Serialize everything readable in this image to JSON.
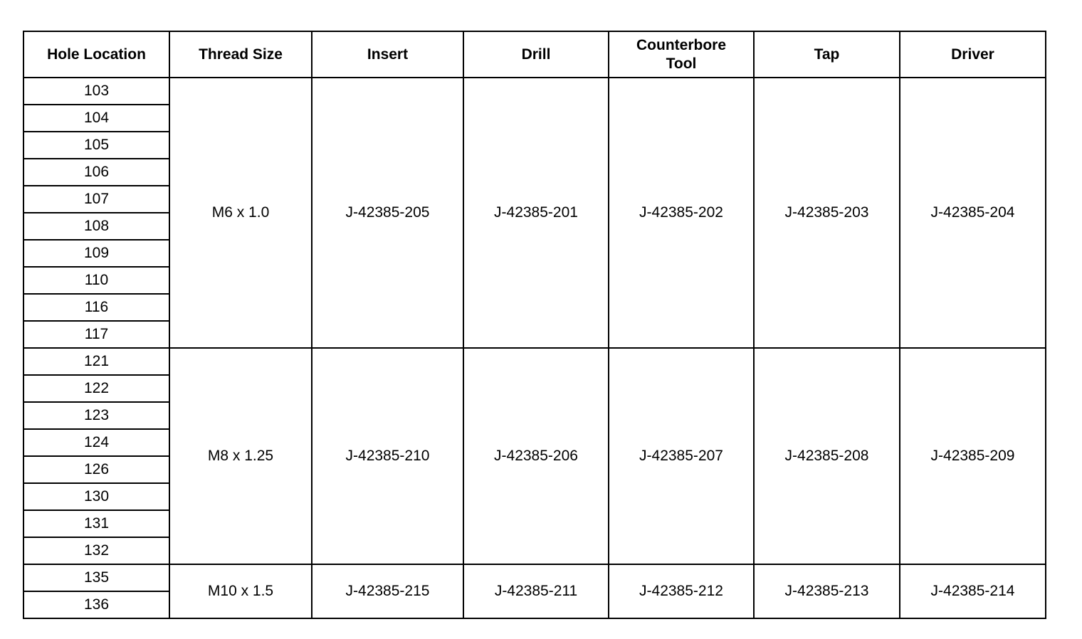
{
  "headers": [
    "Hole Location",
    "Thread Size",
    "Insert",
    "Drill",
    "Counterbore Tool",
    "Tap",
    "Driver"
  ],
  "groups": [
    {
      "holes": [
        "103",
        "104",
        "105",
        "106",
        "107",
        "108",
        "109",
        "110",
        "116",
        "117"
      ],
      "thread_size": "M6 x 1.0",
      "insert": "J-42385-205",
      "drill": "J-42385-201",
      "counterbore_tool": "J-42385-202",
      "tap": "J-42385-203",
      "driver": "J-42385-204"
    },
    {
      "holes": [
        "121",
        "122",
        "123",
        "124",
        "126",
        "130",
        "131",
        "132"
      ],
      "thread_size": "M8 x 1.25",
      "insert": "J-42385-210",
      "drill": "J-42385-206",
      "counterbore_tool": "J-42385-207",
      "tap": "J-42385-208",
      "driver": "J-42385-209"
    },
    {
      "holes": [
        "135",
        "136"
      ],
      "thread_size": "M10 x 1.5",
      "insert": "J-42385-215",
      "drill": "J-42385-211",
      "counterbore_tool": "J-42385-212",
      "tap": "J-42385-213",
      "driver": "J-42385-214"
    }
  ]
}
